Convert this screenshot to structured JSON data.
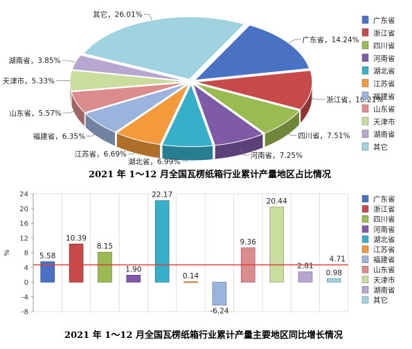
{
  "chart_data": [
    {
      "type": "pie",
      "title": "2021 年 1～12 月全国瓦楞纸箱行业累计产量地区占比情况",
      "slices": [
        {
          "name": "广东省",
          "value": 14.24,
          "color": "#4a72c4",
          "label": "广东省，14.24%"
        },
        {
          "name": "浙江省",
          "value": 10.21,
          "color": "#c64a4a",
          "label": "浙江省，10.21%"
        },
        {
          "name": "四川省",
          "value": 7.51,
          "color": "#9abb52",
          "label": "四川省，7.51%"
        },
        {
          "name": "河南省",
          "value": 7.25,
          "color": "#7e5aa7",
          "label": "河南省，7.25%"
        },
        {
          "name": "湖北省",
          "value": 6.99,
          "color": "#38afc9",
          "label": "湖北省，6.99%"
        },
        {
          "name": "江苏省",
          "value": 6.69,
          "color": "#f39a3c",
          "label": "江苏省，6.69%"
        },
        {
          "name": "福建省",
          "value": 6.35,
          "color": "#9ab4dd",
          "label": "福建省，6.35%"
        },
        {
          "name": "山东省",
          "value": 5.57,
          "color": "#dd8c8e",
          "label": "山东省，5.57%"
        },
        {
          "name": "天津市",
          "value": 5.33,
          "color": "#cbdc9f",
          "label": "天津市，5.33%"
        },
        {
          "name": "湖南省",
          "value": 3.85,
          "color": "#b7a6cf",
          "label": "湖南省，3.85%"
        },
        {
          "name": "其它",
          "value": 26.01,
          "color": "#9fd3df",
          "label": "其它，26.01%"
        }
      ],
      "legend": [
        "广东省",
        "浙江省",
        "四川省",
        "河南省",
        "湖北省",
        "江苏省",
        "福建省",
        "山东省",
        "天津市",
        "湖南省",
        "其它"
      ],
      "legend_position": "right"
    },
    {
      "type": "bar",
      "title": "2021 年 1～12 月全国瓦楞纸箱行业累计产量主要地区同比增长情况",
      "ylabel": "%",
      "ylim": [
        -8,
        24
      ],
      "yticks": [
        -8,
        -4,
        0,
        4,
        8,
        12,
        16,
        20,
        24
      ],
      "categories": [
        "广东省",
        "浙江省",
        "四川省",
        "河南省",
        "湖北省",
        "江苏省",
        "福建省",
        "山东省",
        "天津市",
        "湖南省",
        "其它"
      ],
      "values": [
        5.58,
        10.39,
        8.15,
        1.9,
        22.17,
        0.14,
        -6.24,
        9.36,
        20.44,
        2.81,
        0.98
      ],
      "value_labels": [
        "5.58",
        "10.39",
        "8.15",
        "1.90",
        "22.17",
        "0.14",
        "-6.24",
        "9.36",
        "20.44",
        "2.81",
        "0.98"
      ],
      "colors": [
        "#4a72c4",
        "#c64a4a",
        "#9abb52",
        "#7e5aa7",
        "#38afc9",
        "#f39a3c",
        "#9ab4dd",
        "#dd8c8e",
        "#cbdc9f",
        "#b7a6cf",
        "#9fd3df"
      ],
      "reference_line": {
        "value": 4.71,
        "label": "4.71",
        "color": "#d9403c"
      },
      "grid": "vertical",
      "legend": [
        "广东省",
        "浙江省",
        "四川省",
        "河南省",
        "湖北省",
        "江苏省",
        "福建省",
        "山东省",
        "天津市",
        "湖南省",
        "其它"
      ],
      "legend_position": "right"
    }
  ]
}
